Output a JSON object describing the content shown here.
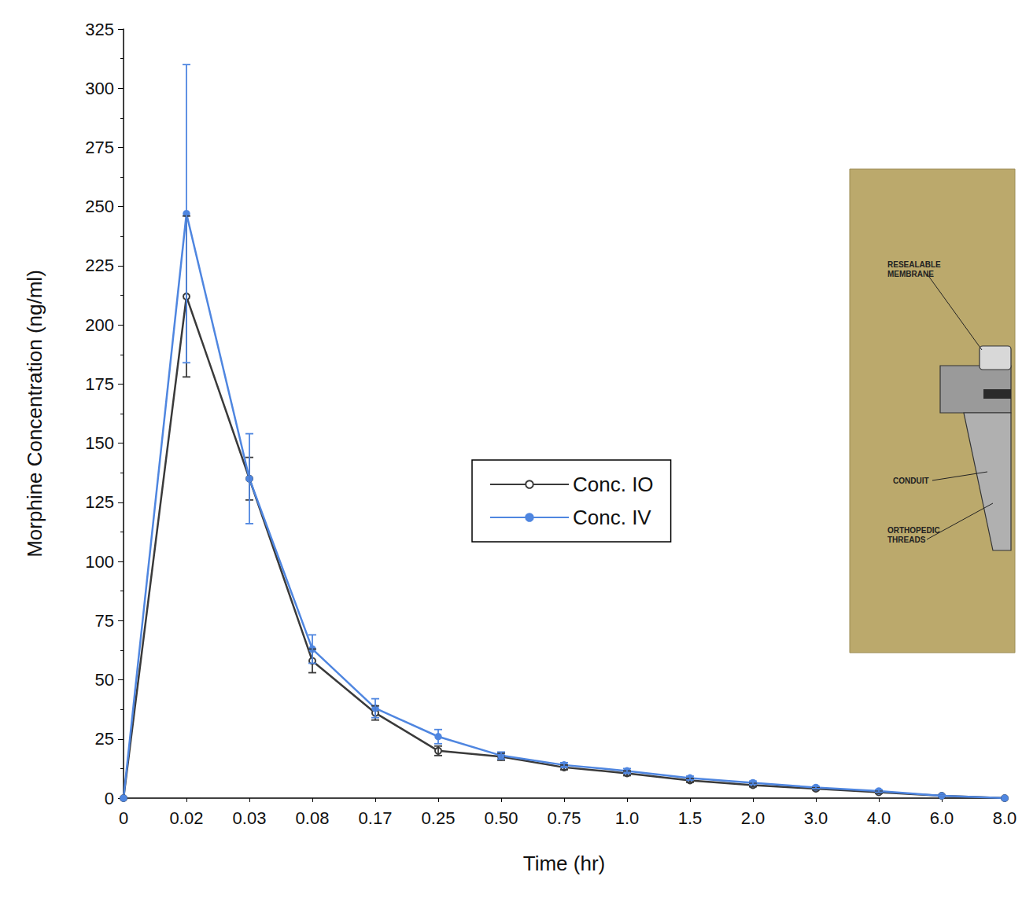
{
  "chart_data": {
    "type": "line",
    "x_label": "Time (hr)",
    "y_label": "Morphine Concentration (ng/ml)",
    "categories": [
      "0",
      "0.02",
      "0.03",
      "0.08",
      "0.17",
      "0.25",
      "0.50",
      "0.75",
      "1.0",
      "1.5",
      "2.0",
      "3.0",
      "4.0",
      "6.0",
      "8.0"
    ],
    "series": [
      {
        "name": "Conc. IO",
        "color": "#3a3a3a",
        "marker": "open_circle",
        "line_style": "solid",
        "values": [
          0,
          212,
          135,
          58,
          36,
          20,
          17.5,
          13,
          10.5,
          7.5,
          5.5,
          4,
          2.5,
          1,
          0
        ],
        "errors": [
          0,
          34,
          9,
          5,
          3,
          2,
          1.5,
          1,
          1,
          0.8,
          0.7,
          0.5,
          0.5,
          0.3,
          0
        ]
      },
      {
        "name": "Conc. IV",
        "color": "#4f86e0",
        "marker": "circle",
        "line_style": "solid",
        "values": [
          0,
          247,
          135,
          63,
          38,
          26,
          18,
          14,
          11.5,
          8.5,
          6.5,
          4.5,
          3,
          1,
          0
        ],
        "errors": [
          0,
          63,
          19,
          6,
          4,
          3,
          1.5,
          1,
          1,
          0.8,
          0.7,
          0.5,
          0.5,
          0.3,
          0
        ]
      }
    ],
    "ylim": [
      0,
      325
    ],
    "yticks": [
      0,
      25,
      50,
      75,
      100,
      125,
      150,
      175,
      200,
      225,
      250,
      275,
      300,
      325
    ],
    "grid": false,
    "legend": "center",
    "annotations": [
      "RESEALABLE MEMBRANE",
      "CONDUIT",
      "ORTHOPEDIC THREADS"
    ]
  }
}
